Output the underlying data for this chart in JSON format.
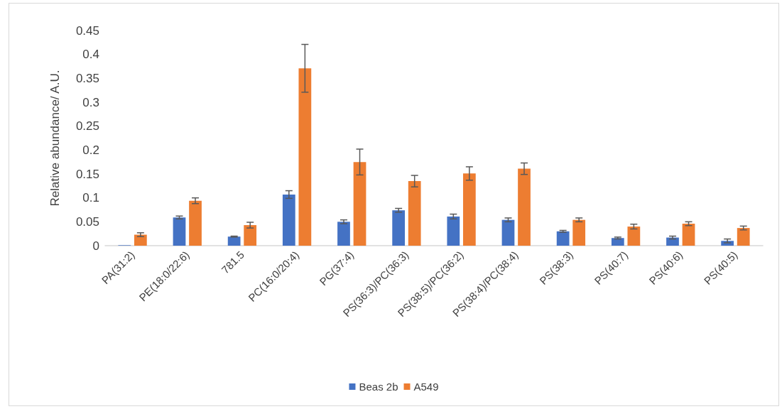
{
  "chart_data": {
    "type": "bar",
    "ylabel": "Relative abundance/ A.U.",
    "categories": [
      "PA(31:2)",
      "PE(18:0/22:6)",
      "781.5",
      "PC(16:0/20:4)",
      "PG(37:4)",
      "PS(36:3)/PC(36:3)",
      "PS(38:5)/PC(36:2)",
      "PS(38:4)/PC(38:4)",
      "PS(38:3)",
      "PS(40:7)",
      "PS(40:6)",
      "PS(40:5)"
    ],
    "series": [
      {
        "name": "Beas 2b",
        "color": "#4472c4",
        "values": [
          0.001,
          0.059,
          0.019,
          0.107,
          0.05,
          0.074,
          0.061,
          0.054,
          0.03,
          0.016,
          0.017,
          0.01
        ],
        "errors": [
          null,
          0.003,
          0.001,
          0.008,
          0.004,
          0.004,
          0.005,
          0.004,
          0.002,
          0.002,
          0.003,
          0.004
        ]
      },
      {
        "name": "A549",
        "color": "#ed7d31",
        "values": [
          0.023,
          0.094,
          0.043,
          0.371,
          0.175,
          0.135,
          0.151,
          0.161,
          0.054,
          0.04,
          0.046,
          0.037
        ],
        "errors": [
          0.004,
          0.006,
          0.006,
          0.05,
          0.027,
          0.012,
          0.014,
          0.012,
          0.004,
          0.005,
          0.004,
          0.004
        ]
      }
    ],
    "ylim": [
      0,
      0.45
    ],
    "yticks": [
      0,
      0.05,
      0.1,
      0.15,
      0.2,
      0.25,
      0.3,
      0.35,
      0.4,
      0.45
    ],
    "grid": false,
    "legend": "bottom"
  }
}
